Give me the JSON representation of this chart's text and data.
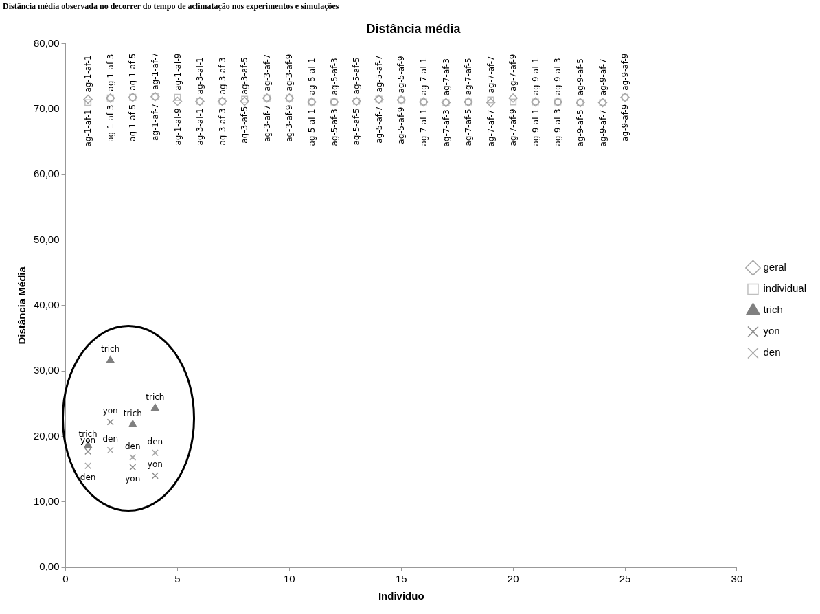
{
  "chart_data": {
    "type": "scatter",
    "title": "Distância média",
    "xlabel": "Individuo",
    "ylabel": "Distância Média",
    "annotations": [
      "Distância média observada no decorrer do tempo de aclimatação nos experimentos e simulações"
    ],
    "xlim": [
      0,
      30
    ],
    "xticks": [
      0,
      5,
      10,
      15,
      20,
      25,
      30
    ],
    "ylim": [
      0,
      80
    ],
    "yticks": [
      {
        "value": 0,
        "label": "0,00"
      },
      {
        "value": 10,
        "label": "10,00"
      },
      {
        "value": 20,
        "label": "20,00"
      },
      {
        "value": 30,
        "label": "30,00"
      },
      {
        "value": 40,
        "label": "40,00"
      },
      {
        "value": 50,
        "label": "50,00"
      },
      {
        "value": 60,
        "label": "60,00"
      },
      {
        "value": 70,
        "label": "70,00"
      },
      {
        "value": 80,
        "label": "80,00"
      }
    ],
    "grid": false,
    "legend": "right",
    "series": [
      {
        "name": "geral",
        "color": "#a6a6a6",
        "marker": "diamond",
        "x": [
          1,
          2,
          3,
          4,
          5,
          6,
          7,
          8,
          9,
          10,
          11,
          12,
          13,
          14,
          15,
          16,
          17,
          18,
          19,
          20,
          21,
          22,
          23,
          24,
          25
        ],
        "values": [
          71.5,
          71.7,
          71.8,
          71.9,
          71.2,
          71.2,
          71.2,
          71.2,
          71.7,
          71.7,
          71.1,
          71.1,
          71.2,
          71.5,
          71.4,
          71.1,
          71.0,
          71.1,
          71.0,
          71.7,
          71.1,
          71.1,
          71.0,
          71.0,
          71.8
        ],
        "value_labels": [
          "ag-1-af-1",
          "ag-1-af-3",
          "ag-1-af-5",
          "ag-1-af-7",
          "ag-1-af-9",
          "ag-3-af-1",
          "ag-3-af-3",
          "ag-3-af-5",
          "ag-3-af-7",
          "ag-3-af-9",
          "ag-5-af-1",
          "ag-5-af-3",
          "ag-5-af-5",
          "ag-5-af-7",
          "ag-5-af-9",
          "ag-7-af-1",
          "ag-7-af-3",
          "ag-7-af-5",
          "ag-7-af-7",
          "ag-7-af-9",
          "ag-9-af-1",
          "ag-9-af-3",
          "ag-9-af-5",
          "ag-9-af-7",
          "ag-9-af-9"
        ]
      },
      {
        "name": "individual",
        "color": "#bfbfbf",
        "marker": "square",
        "x": [
          1,
          2,
          3,
          4,
          5,
          6,
          7,
          8,
          9,
          10,
          11,
          12,
          13,
          14,
          15,
          16,
          17,
          18,
          19,
          20,
          21,
          22,
          23,
          24,
          25
        ],
        "values": [
          71.0,
          71.7,
          71.8,
          71.9,
          71.8,
          71.2,
          71.2,
          71.5,
          71.7,
          71.7,
          71.1,
          71.1,
          71.2,
          71.5,
          71.4,
          71.1,
          71.0,
          71.1,
          71.4,
          71.1,
          71.1,
          71.1,
          71.0,
          71.0,
          71.8
        ],
        "value_labels": [
          "ag-1-af-1",
          "ag-1-af-3",
          "ag-1-af-5",
          "ag-1-af-7",
          "ag-1-af-9",
          "ag-3-af-1",
          "ag-3-af-3",
          "ag-3-af-5",
          "ag-3-af-7",
          "ag-3-af-9",
          "ag-5-af-1",
          "ag-5-af-3",
          "ag-5-af-5",
          "ag-5-af-7",
          "ag-5-af-9",
          "ag-7-af-1",
          "ag-7-af-3",
          "ag-7-af-5",
          "ag-7-af-7",
          "ag-7-af-9",
          "ag-9-af-1",
          "ag-9-af-3",
          "ag-9-af-5",
          "ag-9-af-7",
          "ag-9-af-9"
        ]
      },
      {
        "name": "trich",
        "color": "#808080",
        "marker": "triangle",
        "x": [
          1,
          2,
          3,
          4
        ],
        "values": [
          18.6,
          31.6,
          21.8,
          24.3
        ],
        "value_labels": [
          "trich",
          "trich",
          "trich",
          "trich"
        ]
      },
      {
        "name": "yon",
        "color": "#8c8c8c",
        "marker": "cross",
        "x": [
          1,
          2,
          3,
          4
        ],
        "values": [
          17.7,
          22.2,
          15.3,
          14.0
        ],
        "value_labels": [
          "yon",
          "yon",
          "yon",
          "yon"
        ]
      },
      {
        "name": "den",
        "color": "#a6a6a6",
        "marker": "cross",
        "x": [
          1,
          2,
          3,
          4
        ],
        "values": [
          15.5,
          17.9,
          16.8,
          17.5
        ],
        "value_labels": [
          "den",
          "den",
          "den",
          "den"
        ]
      }
    ]
  }
}
